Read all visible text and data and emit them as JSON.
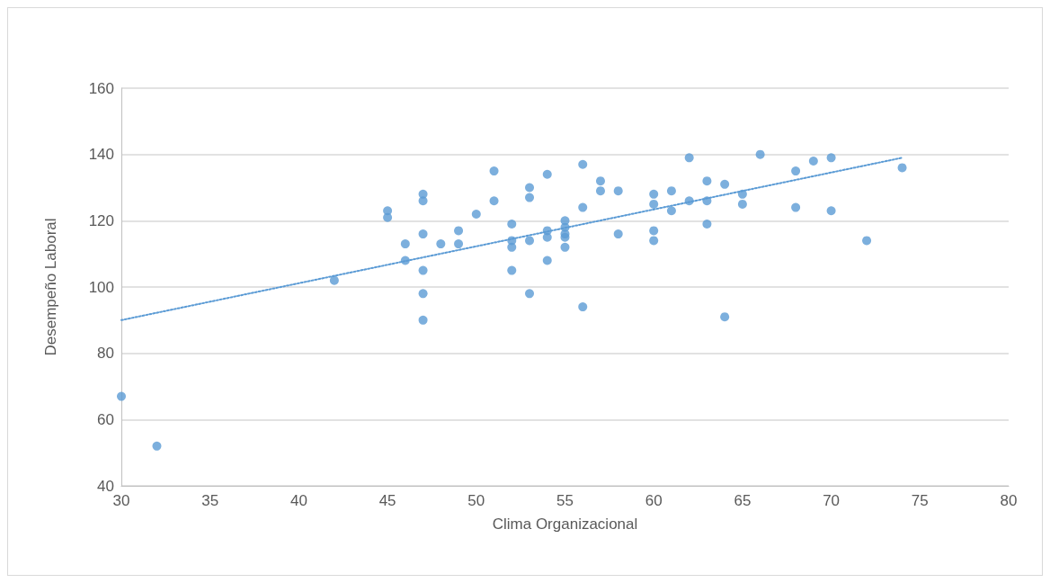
{
  "chart_data": {
    "type": "scatter",
    "xlabel": "Clima Organizacional",
    "ylabel": "Desempeño Laboral",
    "xlim": [
      30,
      80
    ],
    "xticks": [
      30,
      35,
      40,
      45,
      50,
      55,
      60,
      65,
      70,
      75,
      80
    ],
    "ylim": [
      40,
      160
    ],
    "yticks": [
      40,
      60,
      80,
      100,
      120,
      140,
      160
    ],
    "grid": "y",
    "marker": "circle",
    "series": [
      {
        "color": "#5b9bd5",
        "x": [
          30,
          32,
          42,
          45,
          45,
          46,
          46,
          47,
          47,
          47,
          47,
          47,
          47,
          48,
          49,
          49,
          50,
          51,
          51,
          52,
          52,
          52,
          52,
          53,
          53,
          53,
          53,
          54,
          54,
          54,
          54,
          55,
          55,
          55,
          55,
          55,
          56,
          56,
          56,
          57,
          57,
          58,
          58,
          60,
          60,
          60,
          60,
          61,
          61,
          62,
          62,
          63,
          63,
          63,
          64,
          64,
          65,
          65,
          66,
          68,
          68,
          69,
          70,
          70,
          72,
          74
        ],
        "values": [
          67,
          52,
          102,
          123,
          121,
          113,
          108,
          128,
          126,
          116,
          105,
          98,
          90,
          113,
          117,
          113,
          122,
          135,
          126,
          119,
          114,
          112,
          105,
          130,
          127,
          114,
          98,
          134,
          117,
          115,
          108,
          120,
          118,
          116,
          115,
          112,
          137,
          124,
          94,
          132,
          129,
          129,
          116,
          128,
          125,
          117,
          114,
          129,
          123,
          139,
          126,
          132,
          126,
          119,
          131,
          91,
          128,
          125,
          140,
          135,
          124,
          138,
          139,
          123,
          114,
          136
        ]
      },
      {
        "type": "line",
        "color": "#5b9bd5",
        "line_style": "dotted",
        "marker": "none",
        "x": [
          30,
          74
        ],
        "values": [
          90,
          139
        ]
      }
    ]
  }
}
